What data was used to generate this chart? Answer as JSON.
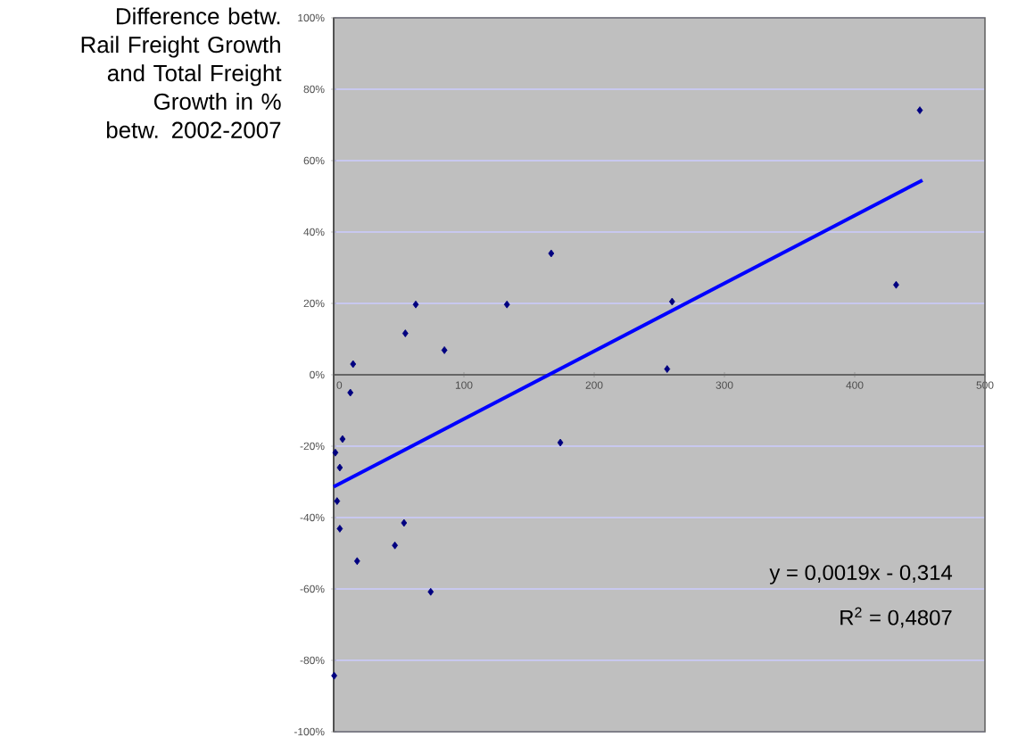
{
  "chart_data": {
    "type": "scatter",
    "ylabel": "Difference betw. Rail Freight Growth and Total Freight Growth in % betw. 2002-2007",
    "xlim": [
      0,
      500
    ],
    "xticks": [
      0,
      100,
      200,
      300,
      400,
      500
    ],
    "ylim": [
      -1,
      1
    ],
    "yticks": [
      {
        "value": -1,
        "label": "-100%"
      },
      {
        "value": -0.8,
        "label": "-80%"
      },
      {
        "value": -0.6,
        "label": "-60%"
      },
      {
        "value": -0.4,
        "label": "-40%"
      },
      {
        "value": -0.2,
        "label": "-20%"
      },
      {
        "value": 0,
        "label": "0%"
      },
      {
        "value": 0.2,
        "label": "20%"
      },
      {
        "value": 0.4,
        "label": "40%"
      },
      {
        "value": 0.6,
        "label": "60%"
      },
      {
        "value": 0.8,
        "label": "80%"
      },
      {
        "value": 1,
        "label": "100%"
      }
    ],
    "grid": "y",
    "marker": "diamond",
    "series": [
      {
        "color": "#000080",
        "x": [
          14.9,
          12.8,
          55,
          63,
          85,
          133,
          167,
          174,
          6.8,
          1.3,
          4.7,
          2.6,
          4.7,
          18,
          47,
          54,
          74.5,
          0.4,
          259.8,
          256,
          431.8,
          450
        ],
        "values": [
          0.03,
          -0.05,
          0.116,
          0.197,
          0.069,
          0.197,
          0.34,
          -0.19,
          -0.18,
          -0.218,
          -0.26,
          -0.354,
          -0.431,
          -0.522,
          -0.478,
          -0.415,
          -0.608,
          -0.843,
          0.205,
          0.016,
          0.252,
          0.741
        ]
      },
      {
        "type": "line",
        "color": "#0000ff",
        "marker": "none",
        "x": [
          0,
          452
        ],
        "values": [
          -0.314,
          0.545
        ]
      }
    ],
    "annotations": [
      "y = 0,0019x - 0,314",
      "R$^{2}$ = 0,4807"
    ]
  }
}
